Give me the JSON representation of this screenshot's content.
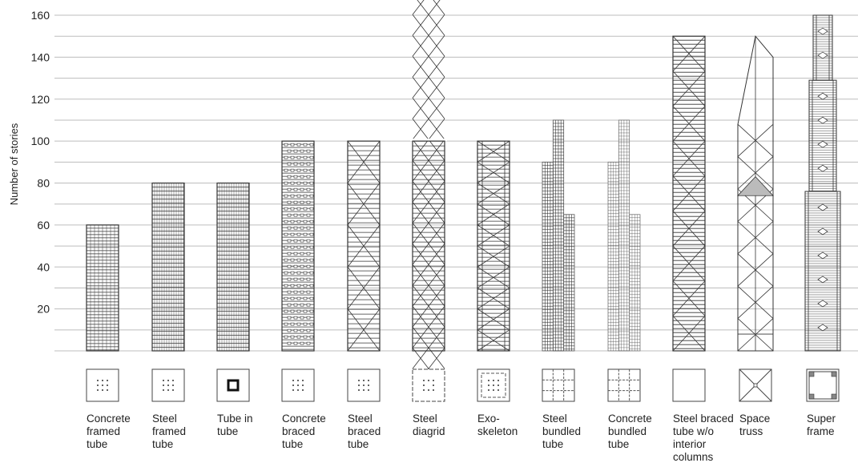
{
  "chart_data": {
    "type": "bar",
    "ylabel": "Number of stories",
    "ylim": [
      0,
      160
    ],
    "yticks": [
      20,
      40,
      60,
      80,
      100,
      120,
      140,
      160
    ],
    "grid": true,
    "categories": [
      {
        "label": [
          "Concrete",
          "framed",
          "tube"
        ],
        "stories": 60,
        "pattern": "concrete-framed",
        "plan": "dots-3x3"
      },
      {
        "label": [
          "Steel",
          "framed",
          "tube"
        ],
        "stories": 80,
        "pattern": "steel-framed",
        "plan": "dots-3x3"
      },
      {
        "label": [
          "Tube in",
          "tube"
        ],
        "stories": 80,
        "pattern": "steel-framed",
        "plan": "inner-tube"
      },
      {
        "label": [
          "Concrete",
          "braced",
          "tube"
        ],
        "stories": 100,
        "pattern": "concrete-braced",
        "plan": "dots-3x3"
      },
      {
        "label": [
          "Steel",
          "braced",
          "tube"
        ],
        "stories": 100,
        "pattern": "braced-x",
        "plan": "dots-3x3"
      },
      {
        "label": [
          "Steel",
          "diagrid"
        ],
        "stories": 100,
        "pattern": "diagrid",
        "plan": "dashed-dots"
      },
      {
        "label": [
          "Exo-",
          "skeleton"
        ],
        "stories": 100,
        "pattern": "exoskeleton",
        "plan": "double-square"
      },
      {
        "label": [
          "Steel",
          "bundled",
          "tube"
        ],
        "stories": 110,
        "pattern": "bundled",
        "plan": "grid-3x3"
      },
      {
        "label": [
          "Concrete",
          "bundled",
          "tube"
        ],
        "stories": 110,
        "pattern": "bundled-fine",
        "plan": "grid-3x3"
      },
      {
        "label": [
          "Steel braced",
          "tube w/o",
          "interior",
          "columns"
        ],
        "stories": 150,
        "pattern": "braced-x-tall",
        "plan": "empty"
      },
      {
        "label": [
          "Space",
          "truss"
        ],
        "stories": 150,
        "pattern": "space-truss",
        "plan": "x-square"
      },
      {
        "label": [
          "Super",
          "frame"
        ],
        "stories": 160,
        "pattern": "super-frame",
        "plan": "super-frame"
      }
    ]
  }
}
